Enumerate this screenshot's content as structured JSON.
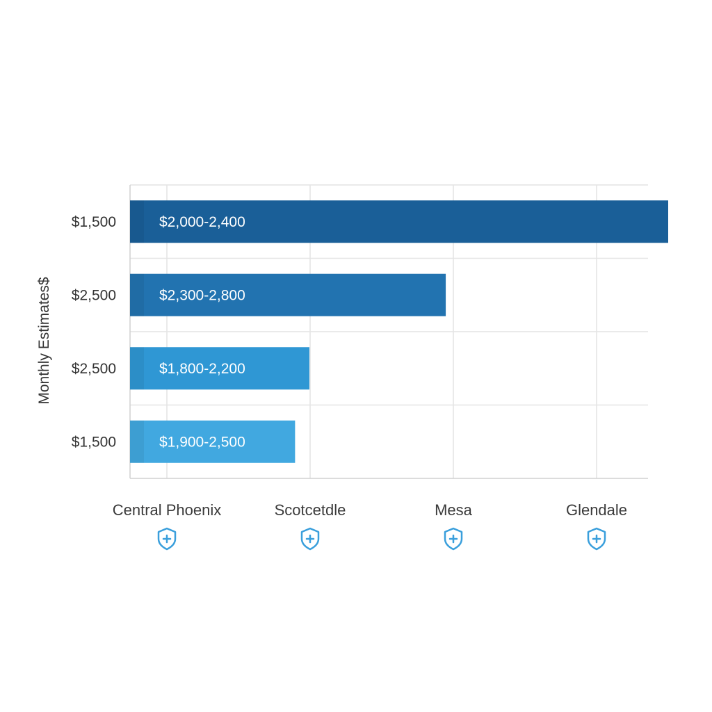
{
  "chart_data": {
    "type": "bar",
    "orientation": "horizontal",
    "ylabel": "Monthly Estimates$",
    "y_tick_labels": [
      "$1,500",
      "$2,500",
      "$2,500",
      "$1,500"
    ],
    "x_categories": [
      "Central Phoenix",
      "Scotcetdle",
      "Mesa",
      "Glendale"
    ],
    "x_category_icon": "shield-plus-icon",
    "series": [
      {
        "values": [
          3.75,
          2.2,
          1.25,
          1.15
        ],
        "labels": [
          "$2,000-2,400",
          "$2,300-2,800",
          "$1,800-2,200",
          "$1,900-2,500"
        ]
      }
    ],
    "xlim": [
      0,
      3.75
    ],
    "grid": true,
    "colors": {
      "bars": [
        "#1a5f98",
        "#2273b0",
        "#2f97d4",
        "#41a8e0"
      ],
      "icon": "#3a9fdc",
      "grid": "#e4e4e4"
    }
  }
}
